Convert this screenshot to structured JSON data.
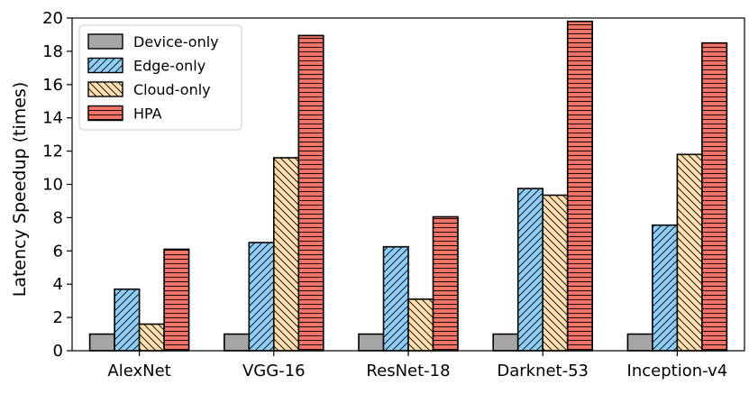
{
  "chart_data": {
    "type": "bar",
    "title": "",
    "xlabel": "",
    "ylabel": "Latency Speedup (times)",
    "ylim": [
      0,
      20
    ],
    "yticks": [
      0,
      2,
      4,
      6,
      8,
      10,
      12,
      14,
      16,
      18,
      20
    ],
    "grid": false,
    "legend_position": "top-left",
    "categories": [
      "AlexNet",
      "VGG-16",
      "ResNet-18",
      "Darknet-53",
      "Inception-v4"
    ],
    "series": [
      {
        "name": "Device-only",
        "values": [
          1,
          1,
          1,
          1,
          1
        ],
        "color": "#a6a6a6",
        "hatch": "none"
      },
      {
        "name": "Edge-only",
        "values": [
          3.7,
          6.5,
          6.25,
          9.75,
          7.55
        ],
        "color": "#8ecff7",
        "hatch": "forward-diagonal"
      },
      {
        "name": "Cloud-only",
        "values": [
          1.6,
          11.6,
          3.1,
          9.35,
          11.8
        ],
        "color": "#fde0ad",
        "hatch": "back-diagonal"
      },
      {
        "name": "HPA",
        "values": [
          6.1,
          18.95,
          8.05,
          19.8,
          18.5
        ],
        "color": "#f27466",
        "hatch": "horizontal"
      }
    ]
  }
}
